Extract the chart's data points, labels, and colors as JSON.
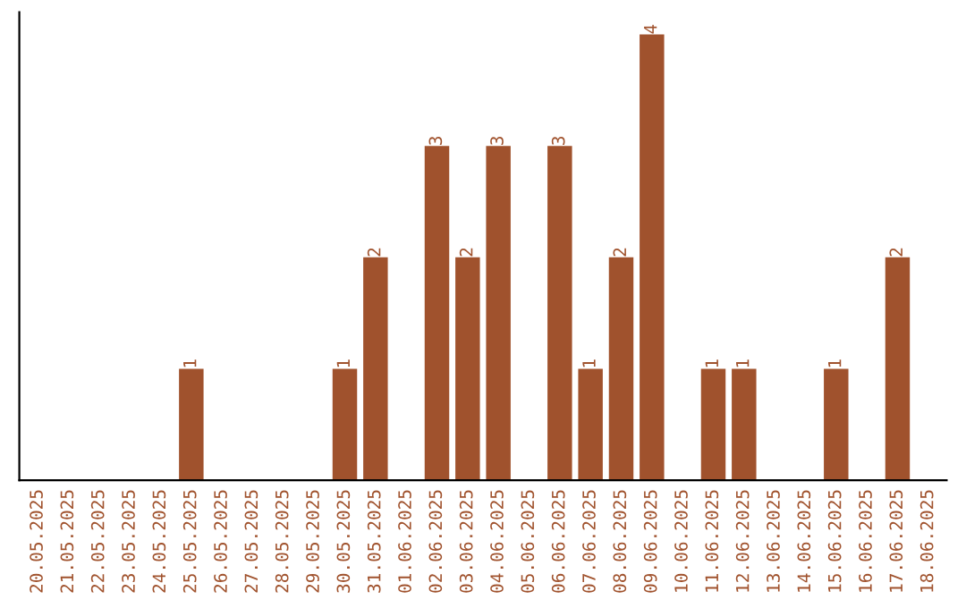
{
  "chart_data": {
    "type": "bar",
    "categories": [
      "20.05.2025",
      "21.05.2025",
      "22.05.2025",
      "23.05.2025",
      "24.05.2025",
      "25.05.2025",
      "26.05.2025",
      "27.05.2025",
      "28.05.2025",
      "29.05.2025",
      "30.05.2025",
      "31.05.2025",
      "01.06.2025",
      "02.06.2025",
      "03.06.2025",
      "04.06.2025",
      "05.06.2025",
      "06.06.2025",
      "07.06.2025",
      "08.06.2025",
      "09.06.2025",
      "10.06.2025",
      "11.06.2025",
      "12.06.2025",
      "13.06.2025",
      "14.06.2025",
      "15.06.2025",
      "16.06.2025",
      "17.06.2025",
      "18.06.2025"
    ],
    "values": [
      0,
      0,
      0,
      0,
      0,
      1,
      0,
      0,
      0,
      0,
      1,
      2,
      0,
      3,
      2,
      3,
      0,
      3,
      1,
      2,
      4,
      0,
      1,
      1,
      0,
      0,
      1,
      0,
      2,
      0
    ],
    "value_labels": [
      null,
      null,
      null,
      null,
      null,
      "1",
      null,
      null,
      null,
      null,
      "1",
      "2",
      null,
      "3",
      "2",
      "3",
      null,
      "3",
      "1",
      "2",
      "4",
      null,
      "1",
      "1",
      null,
      null,
      "1",
      null,
      "2",
      null
    ],
    "color": "#a0522d",
    "tick_labels": "x",
    "grid": false,
    "legend": false
  }
}
